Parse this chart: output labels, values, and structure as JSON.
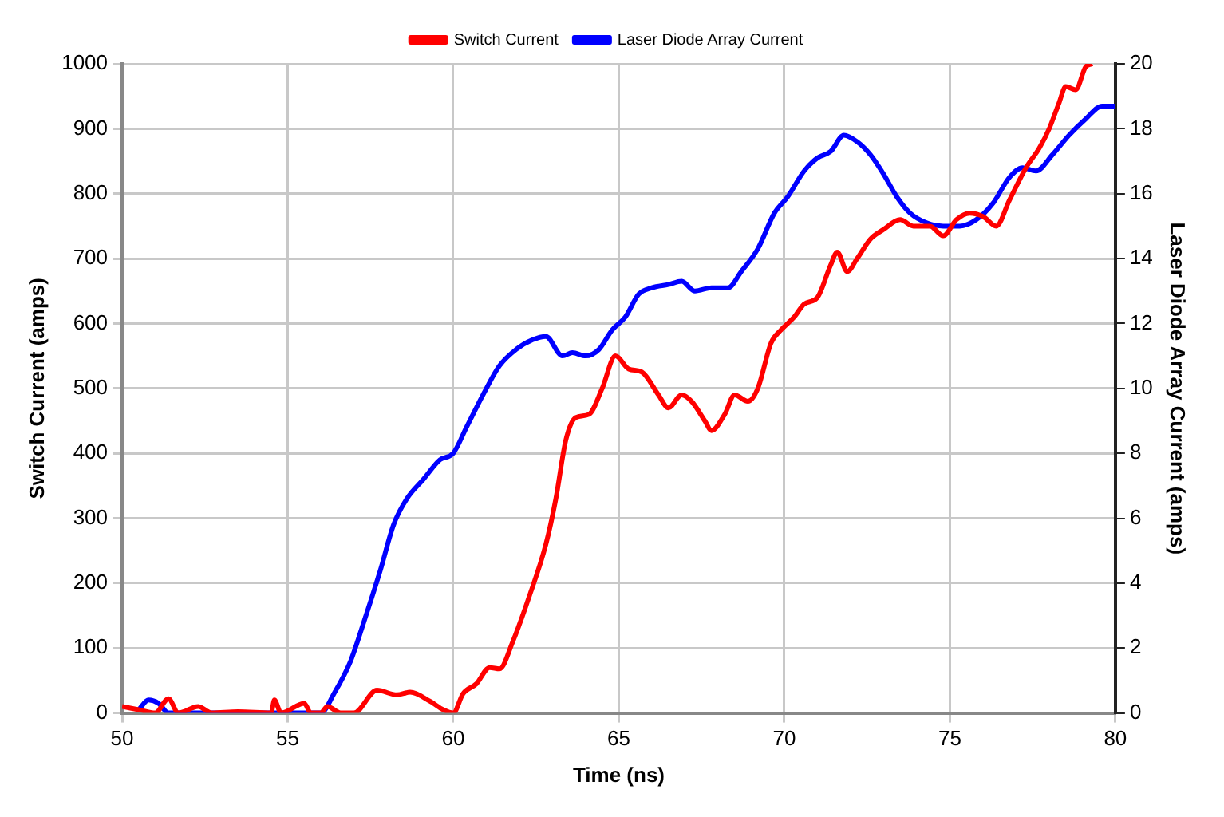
{
  "chart_data": {
    "type": "line",
    "xlabel": "Time (ns)",
    "ylabel": "Switch Current (amps)",
    "y2label": "Laser Diode Array Current (amps)",
    "xlim": [
      50,
      80
    ],
    "xticks": [
      50,
      55,
      60,
      65,
      70,
      75,
      80
    ],
    "ylim": [
      0,
      1000
    ],
    "yticks": [
      0,
      100,
      200,
      300,
      400,
      500,
      600,
      700,
      800,
      900,
      1000
    ],
    "y2lim": [
      0,
      20
    ],
    "y2ticks": [
      0,
      2,
      4,
      6,
      8,
      10,
      12,
      14,
      16,
      18,
      20
    ],
    "grid": true,
    "legend": "top",
    "marker": "none",
    "line_style": "solid",
    "series": [
      {
        "name": "Switch Current",
        "color": "#ff0000",
        "x": [
          50,
          50.5,
          51,
          51.4,
          51.7,
          52.3,
          52.7,
          53.5,
          54.5,
          54.6,
          54.8,
          55.5,
          55.7,
          56,
          56.2,
          56.6,
          57,
          57.7,
          58.3,
          58.7,
          59.3,
          59.7,
          60,
          60.3,
          60.7,
          61.1,
          61.4,
          61.8,
          62.3,
          62.8,
          63.1,
          63.4,
          63.7,
          64.1,
          64.5,
          64.9,
          65.3,
          65.7,
          66.2,
          66.5,
          66.9,
          67.2,
          67.6,
          67.8,
          68.2,
          68.5,
          68.9,
          69.2,
          69.6,
          69.9,
          70.3,
          70.6,
          71,
          71.4,
          71.6,
          71.9,
          72.2,
          72.6,
          73,
          73.5,
          73.9,
          74.4,
          74.8,
          75.2,
          75.6,
          76,
          76.4,
          76.8,
          77.3,
          77.7,
          78,
          78.3,
          78.5,
          78.8,
          79.1,
          79.3
        ],
        "values": [
          10,
          5,
          0,
          22,
          0,
          10,
          0,
          2,
          0,
          20,
          0,
          15,
          0,
          0,
          10,
          0,
          0,
          35,
          28,
          32,
          18,
          5,
          0,
          30,
          45,
          70,
          68,
          110,
          180,
          260,
          330,
          420,
          455,
          460,
          500,
          550,
          530,
          525,
          490,
          470,
          490,
          480,
          450,
          435,
          460,
          490,
          480,
          500,
          570,
          590,
          610,
          630,
          640,
          690,
          710,
          680,
          700,
          730,
          745,
          760,
          750,
          750,
          735,
          760,
          770,
          765,
          750,
          790,
          840,
          870,
          900,
          940,
          965,
          960,
          995,
          1000
        ]
      },
      {
        "name": "Laser Diode Array Current",
        "color": "#0000ff",
        "axis": "y2",
        "x": [
          50.5,
          50.8,
          51.1,
          51.4,
          56,
          56.4,
          56.9,
          57.3,
          57.8,
          58.2,
          58.6,
          59.1,
          59.6,
          60,
          60.4,
          60.9,
          61.4,
          61.9,
          62.4,
          62.8,
          63.3,
          63.6,
          64,
          64.4,
          64.8,
          65.2,
          65.6,
          66,
          66.5,
          66.9,
          67.3,
          67.8,
          68.3,
          68.7,
          69.2,
          69.7,
          70.1,
          70.6,
          71,
          71.4,
          71.8,
          72.2,
          72.6,
          73,
          73.4,
          73.8,
          74.3,
          74.8,
          75.3,
          75.8,
          76.3,
          76.8,
          77.2,
          77.6,
          78.1,
          78.6,
          79.1,
          79.6,
          80
        ],
        "values": [
          0.1,
          0.4,
          0.3,
          0,
          0,
          0.6,
          1.6,
          2.8,
          4.4,
          5.8,
          6.6,
          7.2,
          7.8,
          8,
          8.8,
          9.8,
          10.7,
          11.2,
          11.5,
          11.6,
          11,
          11.1,
          11,
          11.2,
          11.8,
          12.2,
          12.9,
          13.1,
          13.2,
          13.3,
          13,
          13.1,
          13.1,
          13.6,
          14.3,
          15.4,
          15.9,
          16.7,
          17.1,
          17.3,
          17.8,
          17.6,
          17.2,
          16.6,
          15.9,
          15.4,
          15.1,
          15,
          15,
          15.2,
          15.7,
          16.5,
          16.8,
          16.7,
          17.2,
          17.8,
          18.3,
          18.7,
          18.7
        ]
      }
    ]
  }
}
